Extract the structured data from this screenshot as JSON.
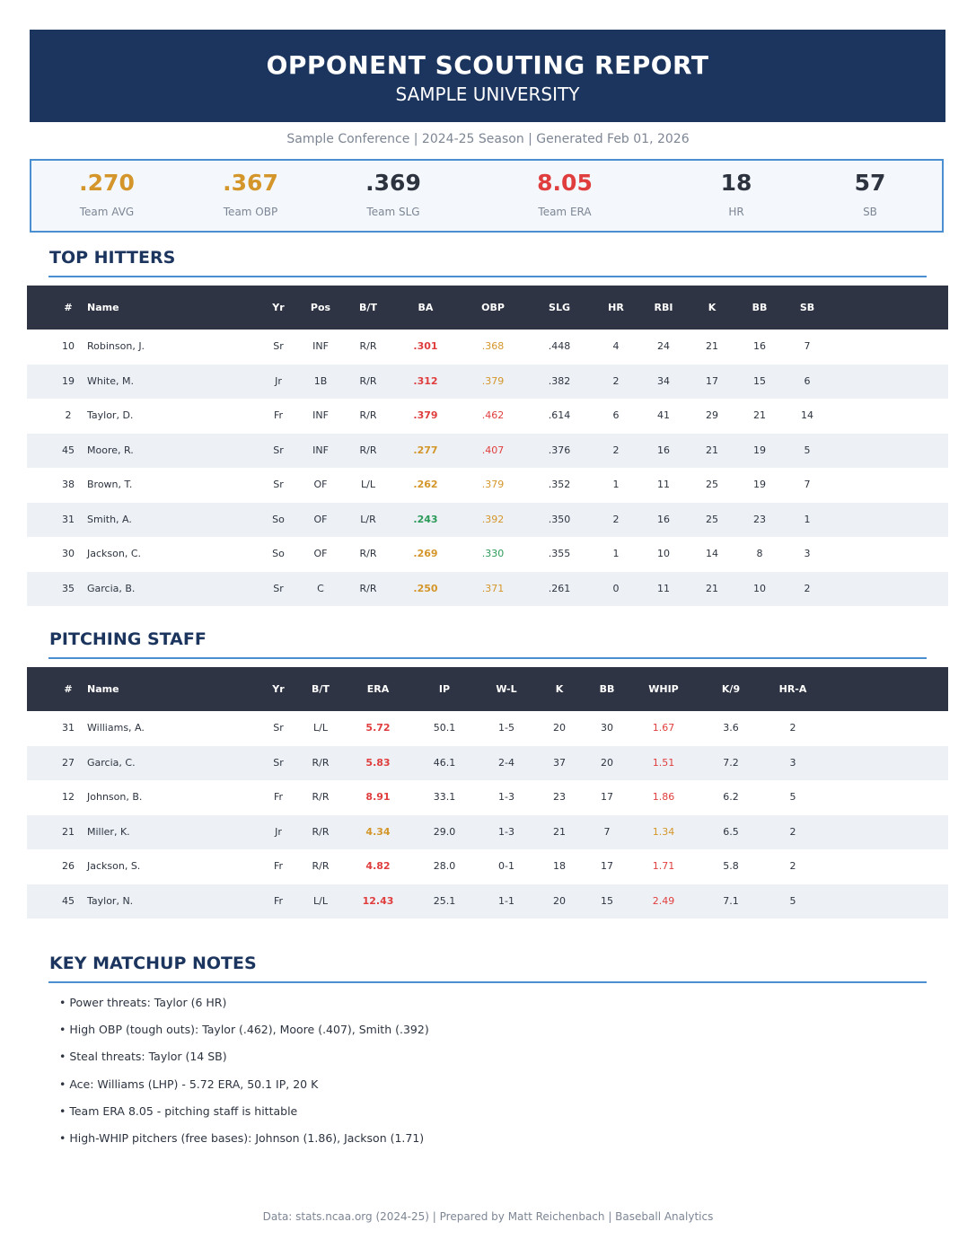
{
  "header": {
    "title": "OPPONENT SCOUTING REPORT",
    "subtitle": "SAMPLE UNIVERSITY",
    "meta": "Sample Conference  |  2024-25 Season  |  Generated Feb 01, 2026"
  },
  "colors": {
    "navy": "#1c355e",
    "accent_blue": "#4a8fd0",
    "table_header": "#2e3444",
    "good": "#e03e3e",
    "mid": "#d4962a",
    "low": "#2c9a58",
    "neutral": "#2d3440"
  },
  "summary": [
    {
      "value": ".270",
      "label": "Team AVG",
      "color": "#d4962a"
    },
    {
      "value": ".367",
      "label": "Team OBP",
      "color": "#d4962a"
    },
    {
      "value": ".369",
      "label": "Team SLG",
      "color": "#2d3440"
    },
    {
      "value": "8.05",
      "label": "Team ERA",
      "color": "#e03e3e"
    },
    {
      "value": "18",
      "label": "HR",
      "color": "#2d3440"
    },
    {
      "value": "57",
      "label": "SB",
      "color": "#2d3440"
    }
  ],
  "hitters": {
    "title": "TOP HITTERS",
    "columns": [
      "#",
      "Name",
      "Yr",
      "Pos",
      "B/T",
      "BA",
      "OBP",
      "SLG",
      "HR",
      "RBI",
      "K",
      "BB",
      "SB"
    ],
    "rows": [
      {
        "num": "10",
        "name": "Robinson, J.",
        "yr": "Sr",
        "pos": "INF",
        "bt": "R/R",
        "ba": ".301",
        "ba_color": "#e03e3e",
        "obp": ".368",
        "obp_color": "#d4962a",
        "slg": ".448",
        "hr": "4",
        "rbi": "24",
        "k": "21",
        "bb": "16",
        "sb": "7"
      },
      {
        "num": "19",
        "name": "White, M.",
        "yr": "Jr",
        "pos": "1B",
        "bt": "R/R",
        "ba": ".312",
        "ba_color": "#e03e3e",
        "obp": ".379",
        "obp_color": "#d4962a",
        "slg": ".382",
        "hr": "2",
        "rbi": "34",
        "k": "17",
        "bb": "15",
        "sb": "6"
      },
      {
        "num": "2",
        "name": "Taylor, D.",
        "yr": "Fr",
        "pos": "INF",
        "bt": "R/R",
        "ba": ".379",
        "ba_color": "#e03e3e",
        "obp": ".462",
        "obp_color": "#e03e3e",
        "slg": ".614",
        "hr": "6",
        "rbi": "41",
        "k": "29",
        "bb": "21",
        "sb": "14"
      },
      {
        "num": "45",
        "name": "Moore, R.",
        "yr": "Sr",
        "pos": "INF",
        "bt": "R/R",
        "ba": ".277",
        "ba_color": "#d4962a",
        "obp": ".407",
        "obp_color": "#e03e3e",
        "slg": ".376",
        "hr": "2",
        "rbi": "16",
        "k": "21",
        "bb": "19",
        "sb": "5"
      },
      {
        "num": "38",
        "name": "Brown, T.",
        "yr": "Sr",
        "pos": "OF",
        "bt": "L/L",
        "ba": ".262",
        "ba_color": "#d4962a",
        "obp": ".379",
        "obp_color": "#d4962a",
        "slg": ".352",
        "hr": "1",
        "rbi": "11",
        "k": "25",
        "bb": "19",
        "sb": "7"
      },
      {
        "num": "31",
        "name": "Smith, A.",
        "yr": "So",
        "pos": "OF",
        "bt": "L/R",
        "ba": ".243",
        "ba_color": "#2c9a58",
        "obp": ".392",
        "obp_color": "#d4962a",
        "slg": ".350",
        "hr": "2",
        "rbi": "16",
        "k": "25",
        "bb": "23",
        "sb": "1"
      },
      {
        "num": "30",
        "name": "Jackson, C.",
        "yr": "So",
        "pos": "OF",
        "bt": "R/R",
        "ba": ".269",
        "ba_color": "#d4962a",
        "obp": ".330",
        "obp_color": "#2c9a58",
        "slg": ".355",
        "hr": "1",
        "rbi": "10",
        "k": "14",
        "bb": "8",
        "sb": "3"
      },
      {
        "num": "35",
        "name": "Garcia, B.",
        "yr": "Sr",
        "pos": "C",
        "bt": "R/R",
        "ba": ".250",
        "ba_color": "#d4962a",
        "obp": ".371",
        "obp_color": "#d4962a",
        "slg": ".261",
        "hr": "0",
        "rbi": "11",
        "k": "21",
        "bb": "10",
        "sb": "2"
      }
    ]
  },
  "pitchers": {
    "title": "PITCHING STAFF",
    "columns": [
      "#",
      "Name",
      "Yr",
      "B/T",
      "ERA",
      "IP",
      "W-L",
      "K",
      "BB",
      "WHIP",
      "K/9",
      "HR-A"
    ],
    "rows": [
      {
        "num": "31",
        "name": "Williams, A.",
        "yr": "Sr",
        "bt": "L/L",
        "era": "5.72",
        "era_color": "#e03e3e",
        "ip": "50.1",
        "wl": "1-5",
        "k": "20",
        "bb": "30",
        "whip": "1.67",
        "whip_color": "#e03e3e",
        "k9": "3.6",
        "hra": "2"
      },
      {
        "num": "27",
        "name": "Garcia, C.",
        "yr": "Sr",
        "bt": "R/R",
        "era": "5.83",
        "era_color": "#e03e3e",
        "ip": "46.1",
        "wl": "2-4",
        "k": "37",
        "bb": "20",
        "whip": "1.51",
        "whip_color": "#e03e3e",
        "k9": "7.2",
        "hra": "3"
      },
      {
        "num": "12",
        "name": "Johnson, B.",
        "yr": "Fr",
        "bt": "R/R",
        "era": "8.91",
        "era_color": "#e03e3e",
        "ip": "33.1",
        "wl": "1-3",
        "k": "23",
        "bb": "17",
        "whip": "1.86",
        "whip_color": "#e03e3e",
        "k9": "6.2",
        "hra": "5"
      },
      {
        "num": "21",
        "name": "Miller, K.",
        "yr": "Jr",
        "bt": "R/R",
        "era": "4.34",
        "era_color": "#d4962a",
        "ip": "29.0",
        "wl": "1-3",
        "k": "21",
        "bb": "7",
        "whip": "1.34",
        "whip_color": "#d4962a",
        "k9": "6.5",
        "hra": "2"
      },
      {
        "num": "26",
        "name": "Jackson, S.",
        "yr": "Fr",
        "bt": "R/R",
        "era": "4.82",
        "era_color": "#e03e3e",
        "ip": "28.0",
        "wl": "0-1",
        "k": "18",
        "bb": "17",
        "whip": "1.71",
        "whip_color": "#e03e3e",
        "k9": "5.8",
        "hra": "2"
      },
      {
        "num": "45",
        "name": "Taylor, N.",
        "yr": "Fr",
        "bt": "L/L",
        "era": "12.43",
        "era_color": "#e03e3e",
        "ip": "25.1",
        "wl": "1-1",
        "k": "20",
        "bb": "15",
        "whip": "2.49",
        "whip_color": "#e03e3e",
        "k9": "7.1",
        "hra": "5"
      }
    ]
  },
  "notes": {
    "title": "KEY MATCHUP NOTES",
    "items": [
      "• Power threats: Taylor (6 HR)",
      "• High OBP (tough outs): Taylor (.462), Moore (.407), Smith (.392)",
      "• Steal threats: Taylor (14 SB)",
      "• Ace: Williams (LHP) - 5.72 ERA, 50.1 IP, 20 K",
      "• Team ERA 8.05 - pitching staff is hittable",
      "• High-WHIP pitchers (free bases): Johnson (1.86), Jackson (1.71)"
    ]
  },
  "footer": "Data: stats.ncaa.org (2024-25)  |  Prepared by Matt Reichenbach  |  Baseball Analytics"
}
